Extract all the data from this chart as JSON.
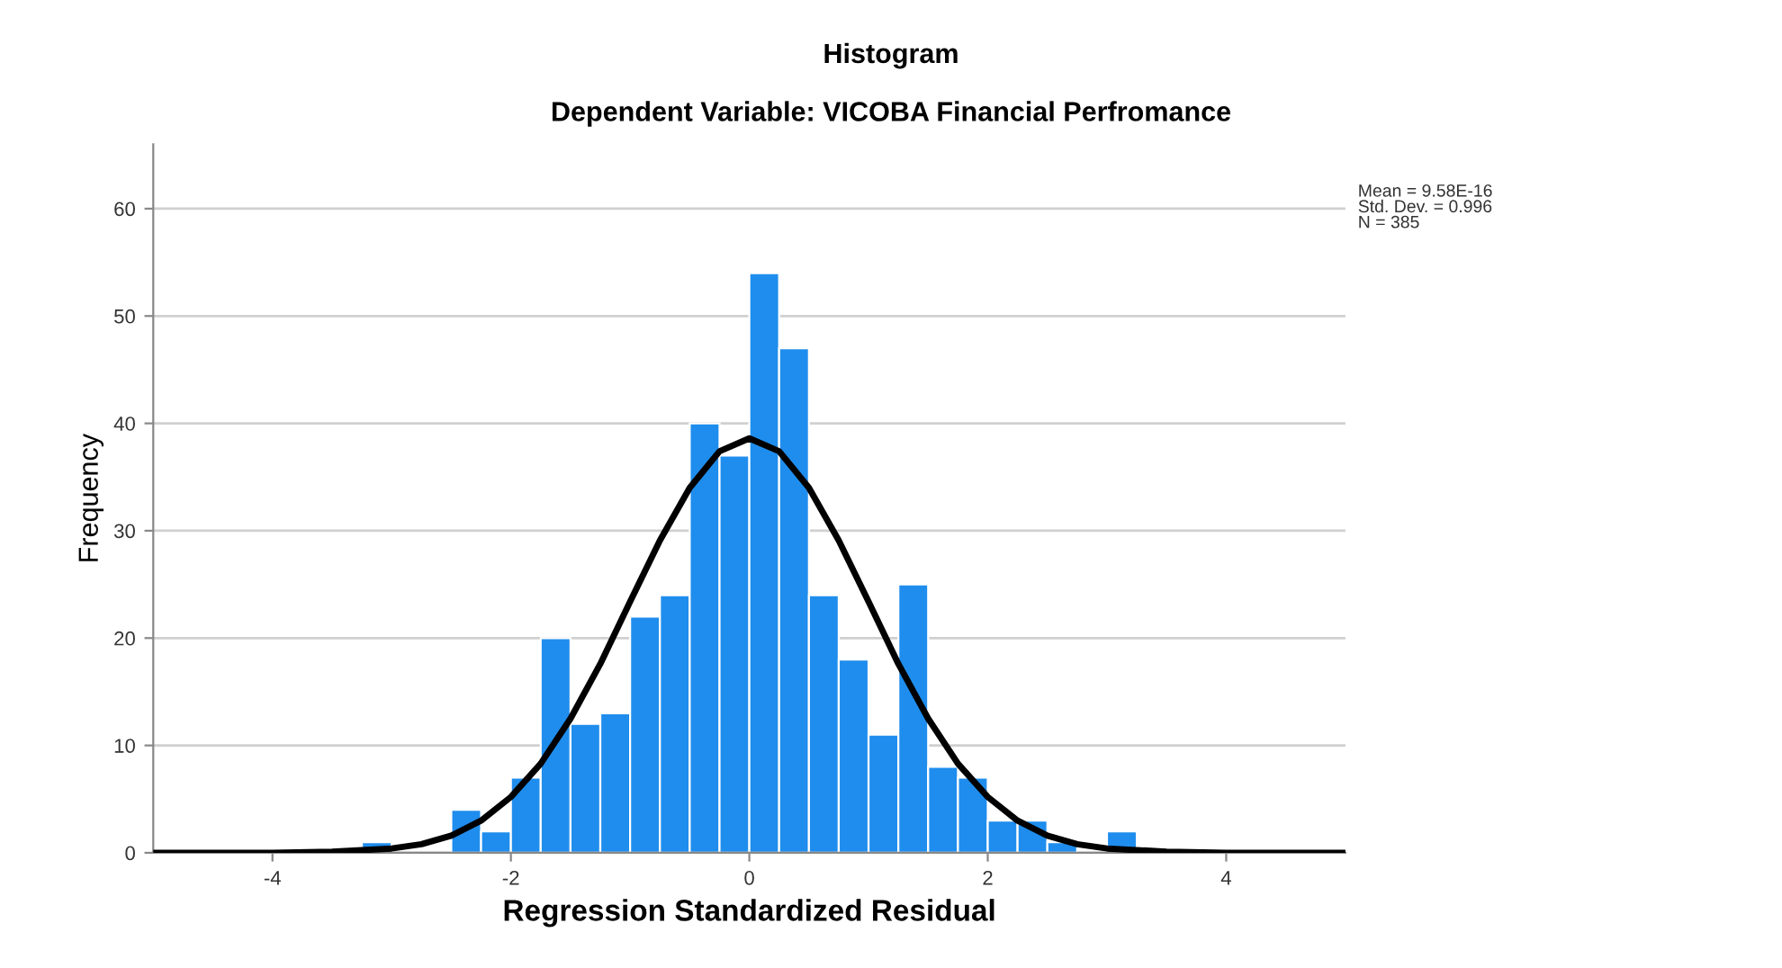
{
  "chart_data": {
    "type": "histogram",
    "title": "Histogram",
    "subtitle": "Dependent Variable: VICOBA Financial Perfromance",
    "xlabel": "Regression Standardized Residual",
    "ylabel": "Frequency",
    "bins": [
      -3.25,
      -3.0,
      -2.75,
      -2.5,
      -2.25,
      -2.0,
      -1.75,
      -1.5,
      -1.25,
      -1.0,
      -0.75,
      -0.5,
      -0.25,
      0.0,
      0.25,
      0.5,
      0.75,
      1.0,
      1.25,
      1.5,
      1.75,
      2.0,
      2.25,
      2.5,
      2.75,
      3.0,
      3.25
    ],
    "series": [
      {
        "type": "histogram",
        "color": "#1f8ded",
        "values": [
          1,
          0,
          0,
          4,
          2,
          7,
          20,
          12,
          13,
          22,
          24,
          40,
          37,
          54,
          47,
          24,
          18,
          11,
          25,
          8,
          7,
          3,
          3,
          1,
          0,
          2
        ]
      },
      {
        "type": "line",
        "color": "#000000",
        "x": [
          -5,
          -4.5,
          -4,
          -3.5,
          -3,
          -2.75,
          -2.5,
          -2.25,
          -2,
          -1.75,
          -1.5,
          -1.25,
          -1,
          -0.75,
          -0.5,
          -0.25,
          0,
          0.25,
          0.5,
          0.75,
          1,
          1.25,
          1.5,
          1.75,
          2,
          2.25,
          2.5,
          2.75,
          3,
          3.5,
          4,
          4.5,
          5
        ],
        "values": [
          0,
          0,
          0,
          0.1,
          0.4,
          0.8,
          1.6,
          3,
          5.2,
          8.3,
          12.5,
          17.6,
          23.4,
          29.1,
          34,
          37.4,
          38.6,
          37.4,
          34,
          29.1,
          23.4,
          17.6,
          12.5,
          8.3,
          5.2,
          3,
          1.6,
          0.8,
          0.4,
          0.1,
          0,
          0,
          0
        ]
      }
    ],
    "xlim": [
      -5,
      5
    ],
    "ylim": [
      0,
      66
    ],
    "xticks": [
      -4,
      -2,
      0,
      2,
      4
    ],
    "yticks": [
      0,
      10,
      20,
      30,
      40,
      50,
      60
    ],
    "grid": "y",
    "annotations": [
      "Mean = 9.58E-16\nStd. Dev. = 0.996\nN = 385"
    ]
  }
}
